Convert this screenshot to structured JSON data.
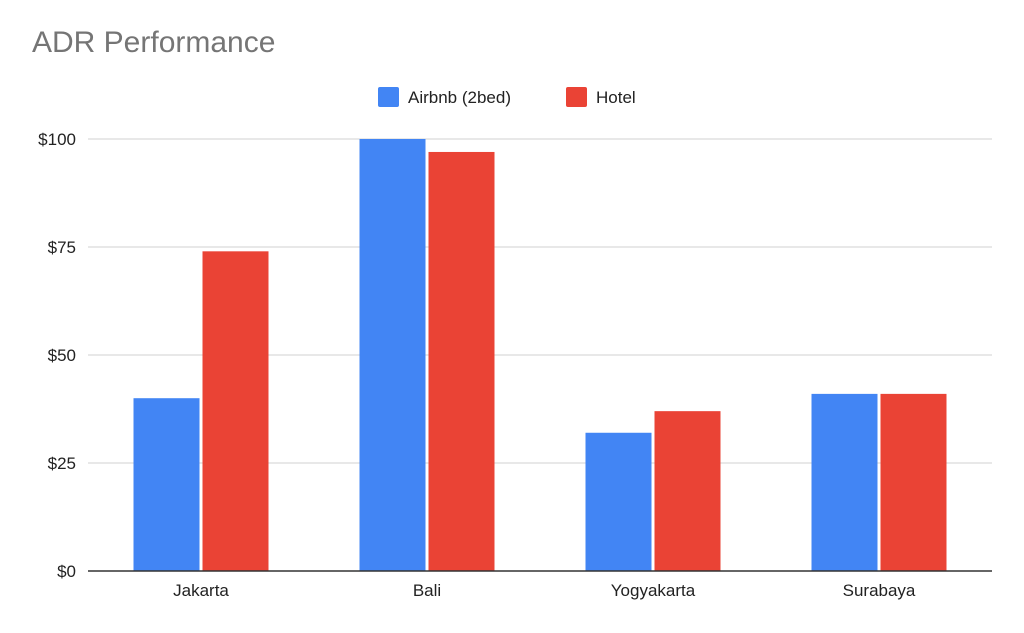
{
  "chart_data": {
    "type": "bar",
    "title": "ADR Performance",
    "categories": [
      "Jakarta",
      "Bali",
      "Yogyakarta",
      "Surabaya"
    ],
    "series": [
      {
        "name": "Airbnb (2bed)",
        "color": "#4285F4",
        "values": [
          40,
          100,
          32,
          41
        ]
      },
      {
        "name": "Hotel",
        "color": "#EA4335",
        "values": [
          74,
          97,
          37,
          41
        ]
      }
    ],
    "ylim": [
      0,
      100
    ],
    "yticks": [
      0,
      25,
      50,
      75,
      100
    ],
    "ytick_labels": [
      "$0",
      "$25",
      "$50",
      "$75",
      "$100"
    ],
    "grid": true,
    "legend_position": "top-center"
  }
}
